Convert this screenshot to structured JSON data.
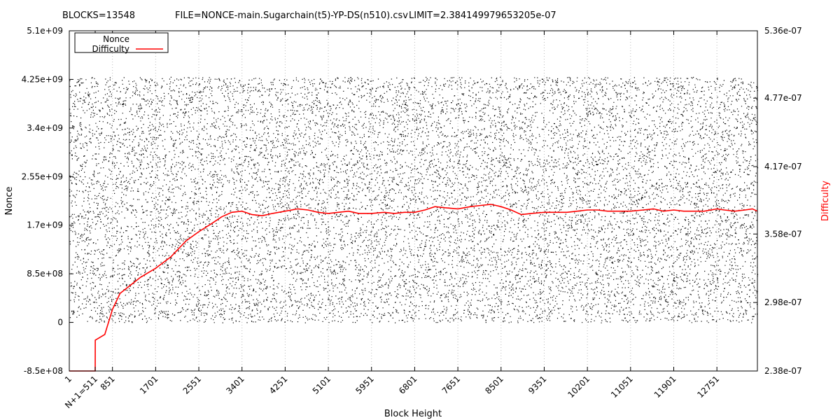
{
  "header": {
    "blocks": "BLOCKS=13548",
    "file": "FILE=NONCE-main.Sugarchain(t5)-YP-DS(n510).csv",
    "limit": "LIMIT=2.384149979653205e-07"
  },
  "chart_data": {
    "type": "scatter",
    "xlabel": "Block Height",
    "ylabel": "Nonce",
    "y2label": "Difficulty",
    "xlim": [
      1,
      13548
    ],
    "ylim": [
      -850000000,
      5100000000
    ],
    "y2lim": [
      2.38e-07,
      5.36e-07
    ],
    "x_ticks": [
      "1",
      "N+1=511",
      "851",
      "1701",
      "2551",
      "3401",
      "4251",
      "5101",
      "5951",
      "6801",
      "7651",
      "8501",
      "9351",
      "10201",
      "11051",
      "11901",
      "12751"
    ],
    "x_tick_values": [
      1,
      511,
      851,
      1701,
      2551,
      3401,
      4251,
      5101,
      5951,
      6801,
      7651,
      8501,
      9351,
      10201,
      11051,
      11901,
      12751
    ],
    "y_ticks": [
      "-8.5e+08",
      "0",
      "8.5e+08",
      "1.7e+09",
      "2.55e+09",
      "3.4e+09",
      "4.25e+09",
      "5.1e+09"
    ],
    "y_tick_values": [
      -850000000,
      0,
      850000000,
      1700000000,
      2550000000,
      3400000000,
      4250000000,
      5100000000
    ],
    "y2_ticks": [
      "2.38e-07",
      "2.98e-07",
      "3.58e-07",
      "4.17e-07",
      "4.77e-07",
      "5.36e-07"
    ],
    "y2_tick_values": [
      2.38e-07,
      2.98e-07,
      3.58e-07,
      4.17e-07,
      4.77e-07,
      5.36e-07
    ],
    "grid": "vertical-dotted",
    "legend_position": "top-left",
    "series": [
      {
        "name": "Nonce",
        "axis": "y",
        "color": "#000000",
        "distribution": "uniform",
        "range": [
          0,
          4294967295
        ]
      },
      {
        "name": "Difficulty",
        "axis": "y2",
        "color": "#ff0000",
        "x": [
          1,
          511,
          512,
          700,
          851,
          1000,
          1200,
          1400,
          1701,
          2000,
          2300,
          2551,
          2800,
          3000,
          3200,
          3401,
          3600,
          3800,
          4000,
          4251,
          4500,
          4700,
          4900,
          5101,
          5300,
          5500,
          5700,
          5951,
          6200,
          6400,
          6600,
          6801,
          7000,
          7200,
          7400,
          7651,
          7900,
          8100,
          8300,
          8400,
          8501,
          8700,
          8900,
          9100,
          9351,
          9600,
          9800,
          10000,
          10201,
          10400,
          10600,
          10800,
          11051,
          11300,
          11500,
          11700,
          11901,
          12100,
          12300,
          12500,
          12751,
          12900,
          13100,
          13300,
          13450,
          13548
        ],
        "y": [
          2.38e-07,
          2.38e-07,
          2.65e-07,
          2.7e-07,
          2.92e-07,
          3.06e-07,
          3.13e-07,
          3.2e-07,
          3.28e-07,
          3.38e-07,
          3.52e-07,
          3.6e-07,
          3.67e-07,
          3.73e-07,
          3.77e-07,
          3.78e-07,
          3.75e-07,
          3.74e-07,
          3.76e-07,
          3.78e-07,
          3.8e-07,
          3.79e-07,
          3.77e-07,
          3.76e-07,
          3.77e-07,
          3.78e-07,
          3.76e-07,
          3.76e-07,
          3.77e-07,
          3.76e-07,
          3.77e-07,
          3.77e-07,
          3.79e-07,
          3.82e-07,
          3.81e-07,
          3.8e-07,
          3.82e-07,
          3.83e-07,
          3.84e-07,
          3.83e-07,
          3.82e-07,
          3.79e-07,
          3.75e-07,
          3.76e-07,
          3.77e-07,
          3.77e-07,
          3.77e-07,
          3.78e-07,
          3.79e-07,
          3.79e-07,
          3.78e-07,
          3.78e-07,
          3.78e-07,
          3.79e-07,
          3.8e-07,
          3.78e-07,
          3.79e-07,
          3.78e-07,
          3.78e-07,
          3.78e-07,
          3.8e-07,
          3.79e-07,
          3.78e-07,
          3.79e-07,
          3.8e-07,
          3.78e-07
        ]
      }
    ]
  }
}
